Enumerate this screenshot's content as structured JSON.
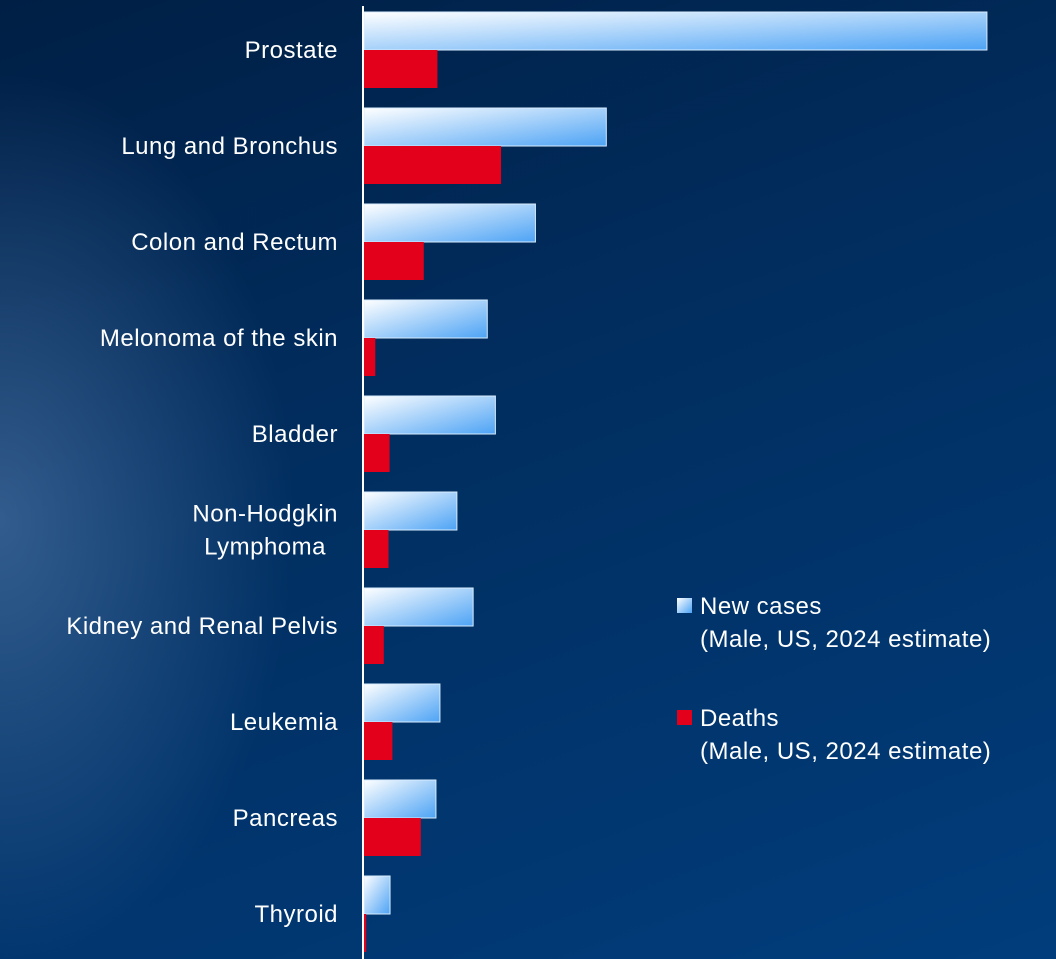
{
  "chart_data": {
    "type": "bar",
    "orientation": "horizontal",
    "categories": [
      [
        "Prostate"
      ],
      [
        "Lung and Bronchus"
      ],
      [
        "Colon and Rectum"
      ],
      [
        "Melonoma of the skin"
      ],
      [
        "Bladder"
      ],
      [
        "Non-Hodgkin",
        "Lymphoma"
      ],
      [
        "Kidney and Renal Pelvis"
      ],
      [
        "Leukemia"
      ],
      [
        "Pancreas"
      ],
      [
        "Thyroid"
      ]
    ],
    "series": [
      {
        "name_lines": [
          "New cases",
          "(Male, US, 2024 estimate)"
        ],
        "color": "#4da3f5",
        "values": [
          299010,
          116310,
          82290,
          59170,
          63070,
          44590,
          52380,
          36450,
          34530,
          12500
        ]
      },
      {
        "name_lines": [
          "Deaths",
          "(Male, US, 2024 estimate)"
        ],
        "color": "#e2001a",
        "values": [
          35250,
          65790,
          28700,
          5430,
          12290,
          11780,
          9520,
          13640,
          27270,
          1050
        ]
      }
    ],
    "xlim": [
      0,
      300000
    ],
    "axis_labels_shown": false,
    "grid": false,
    "legend_position": "right"
  }
}
